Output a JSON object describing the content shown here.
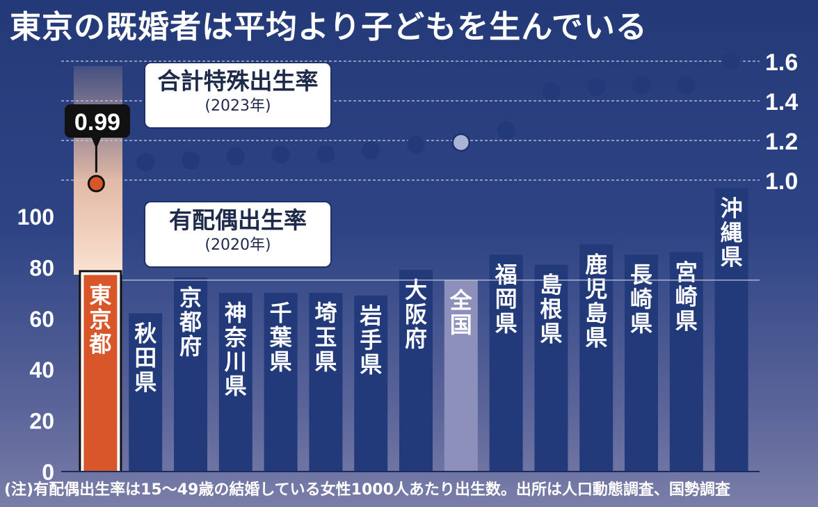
{
  "title": "東京の既婚者は平均より子どもを生んでいる",
  "note": "(注)有配偶出生率は15～49歳の結婚している女性1000人あたり出生数。出所は人口動態調査、国勢調査",
  "colors": {
    "bar": "#233a7a",
    "highlight": "#d9562a",
    "national": "#8c90bb",
    "dot": "#233a7a",
    "national_dot": "#a9b4d6"
  },
  "chart_data": {
    "type": "bar",
    "categories": [
      "東京都",
      "秋田県",
      "京都府",
      "神奈川県",
      "千葉県",
      "埼玉県",
      "岩手県",
      "大阪府",
      "全国",
      "福岡県",
      "島根県",
      "鹿児島県",
      "長崎県",
      "宮崎県",
      "沖縄県"
    ],
    "series": [
      {
        "name": "有配偶出生率",
        "period": "(2020年)",
        "axis": "left",
        "values": [
          77,
          62,
          76,
          70,
          70,
          70,
          69,
          79,
          75,
          85,
          81,
          89,
          85,
          86,
          111
        ]
      },
      {
        "name": "合計特殊出生率",
        "period": "(2023年)",
        "axis": "right",
        "values": [
          0.99,
          1.09,
          1.1,
          1.12,
          1.13,
          1.13,
          1.15,
          1.18,
          1.19,
          1.25,
          1.45,
          1.47,
          1.48,
          1.48,
          1.6
        ]
      }
    ],
    "highlight_category": "東京都",
    "reference_category": "全国",
    "callout": "0.99",
    "left_axis": {
      "ticks": [
        "0",
        "20",
        "40",
        "60",
        "80",
        "100"
      ],
      "ylim": [
        0,
        120
      ]
    },
    "right_axis": {
      "ticks": [
        "1.0",
        "1.2",
        "1.4",
        "1.6"
      ],
      "ylim": [
        1.0,
        1.6
      ]
    }
  }
}
